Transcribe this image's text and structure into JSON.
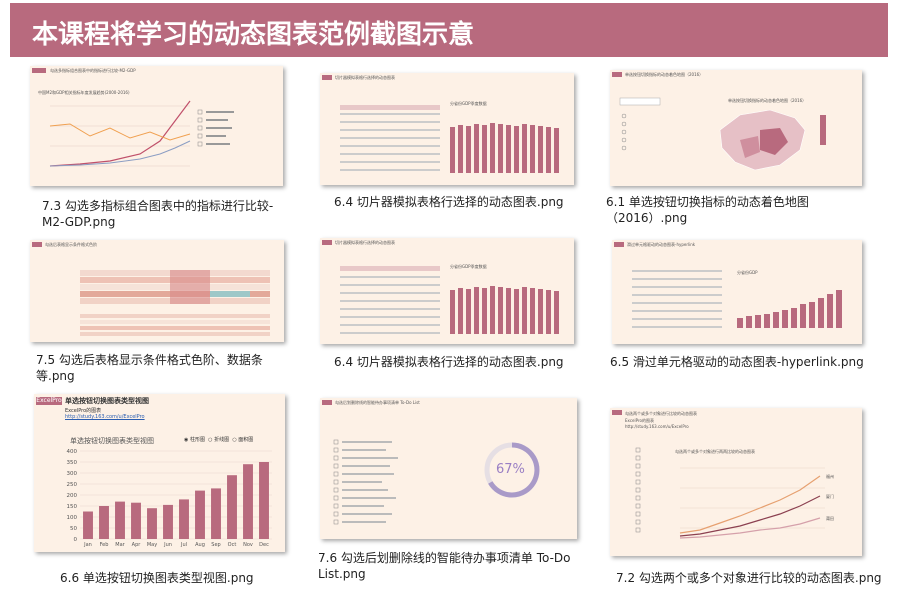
{
  "header": {
    "title": "本课程将学习的动态图表范例截图示意"
  },
  "thumbnails": [
    {
      "caption": "7.3 勾选多指标组合图表中的指标进行比较-M2-GDP.png",
      "inner": {
        "title": "勾选多指标组合图表中的指标进行比较-M2-GDP",
        "chart_title": "中国M2和GDP相关指标年度发展趋势(2000-2016)"
      }
    },
    {
      "caption": "6.4 切片器模拟表格行选择的动态图表.png",
      "inner": {
        "title": "切片器模拟表格行选择的动态图表",
        "chart_title": "分省份GDP季度数据"
      }
    },
    {
      "caption": "6.1 单选按钮切换指标的动态着色地图（2016）.png",
      "inner": {
        "title": "单选按钮切换指标的动态着色地图（2016）",
        "chart_title": "单选按钮切换指标的动态着色地图（2016）"
      }
    },
    {
      "caption": "7.5 勾选后表格显示条件格式色阶、数据条等.png",
      "inner": {
        "title": "勾选后表格显示条件格式色阶"
      }
    },
    {
      "caption": "6.4 切片器模拟表格行选择的动态图表.png",
      "inner": {
        "title": "切片器模拟表格行选择的动态图表",
        "chart_title": "分省份GDP季度数据"
      }
    },
    {
      "caption": "6.5 滑过单元格驱动的动态图表-hyperlink.png",
      "inner": {
        "title": "滑过单元格驱动的动态图表-hyperlink",
        "chart_title": "分省份GDP"
      }
    },
    {
      "caption": "6.6 单选按钮切换图表类型视图.png",
      "inner": {
        "logo": "ExcelPro",
        "title": "单选按钮切换图表类型视图",
        "subtitle": "ExcelPro的图表",
        "link": "http://study.163.com/u/ExcelPro",
        "chart_title": "单选按钮切换图表类型视图",
        "radio_options": [
          "柱形图",
          "折线图",
          "面积图"
        ]
      }
    },
    {
      "caption": "7.6 勾选后划删除线的智能待办事项清单 To-Do List.png",
      "inner": {
        "title": "勾选后划删除线的智能待办事项清单 To-Do List",
        "percent": "67%"
      }
    },
    {
      "caption": "7.2 勾选两个或多个对象进行比较的动态图表.png",
      "inner": {
        "title": "勾选两个或多个对象进行比较的动态图表",
        "subtitle": "ExcelPro的图表",
        "link": "http://study.163.com/u/ExcelPro",
        "chart_title": "勾选两个或多个对象进行两两比较的动态图表",
        "series": [
          "福州",
          "厦门",
          "莆田"
        ]
      }
    }
  ],
  "chart_data": {
    "type": "bar",
    "title": "单选按钮切换图表类型视图",
    "categories": [
      "Jan",
      "Feb",
      "Mar",
      "Apr",
      "May",
      "Jun",
      "Jul",
      "Aug",
      "Sep",
      "Oct",
      "Nov",
      "Dec"
    ],
    "values": [
      125,
      150,
      170,
      165,
      140,
      155,
      180,
      220,
      230,
      290,
      340,
      350
    ],
    "ylim": [
      0,
      400
    ],
    "yticks": [
      0,
      50,
      100,
      150,
      200,
      250,
      300,
      350,
      400
    ],
    "colors": {
      "bar": "#b86a7e",
      "banner": "#b86a7e",
      "thumb_bg": "#fdf1e6"
    }
  }
}
